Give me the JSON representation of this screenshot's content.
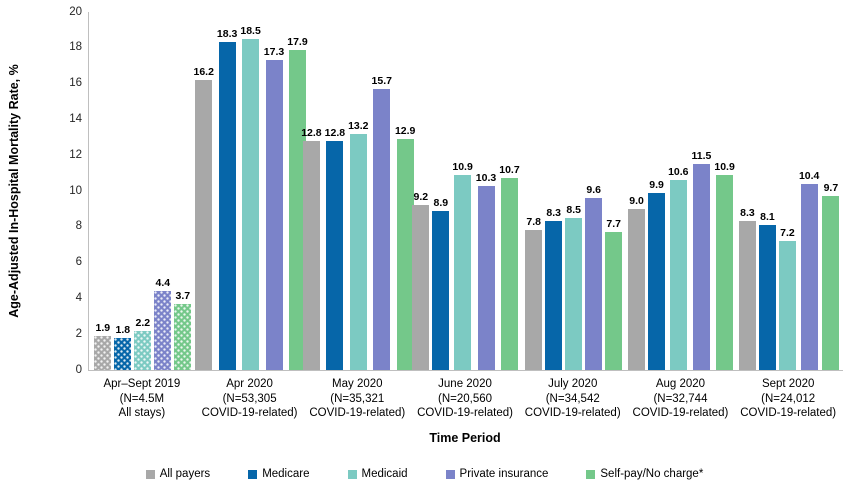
{
  "chart_data": {
    "type": "bar",
    "title": "",
    "ylabel": "Age-Adjusted In-Hospital Mortality Rate, %",
    "xlabel": "Time Period",
    "ylim": [
      0,
      20
    ],
    "ytick_step": 2,
    "grid": false,
    "legend_position": "bottom",
    "value_label_decimals": 1,
    "axis_line_color": "#BFBFBF",
    "categories": [
      {
        "lines": [
          "Apr–Sept 2019",
          "(N=4.5M",
          "All stays)"
        ],
        "patterned": true
      },
      {
        "lines": [
          "Apr 2020",
          "(N=53,305",
          "COVID-19-related)"
        ],
        "patterned": false
      },
      {
        "lines": [
          "May 2020",
          "(N=35,321",
          "COVID-19-related)"
        ],
        "patterned": false
      },
      {
        "lines": [
          "June 2020",
          "(N=20,560",
          "COVID-19-related)"
        ],
        "patterned": false
      },
      {
        "lines": [
          "July 2020",
          "(N=34,542",
          "COVID-19-related)"
        ],
        "patterned": false
      },
      {
        "lines": [
          "Aug 2020",
          "(N=32,744",
          "COVID-19-related)"
        ],
        "patterned": false
      },
      {
        "lines": [
          "Sept 2020",
          "(N=24,012",
          "COVID-19-related)"
        ],
        "patterned": false
      }
    ],
    "series": [
      {
        "name": "All payers",
        "color": "#A8A8A8",
        "values": [
          1.9,
          16.2,
          12.8,
          9.2,
          7.8,
          9.0,
          8.3
        ]
      },
      {
        "name": "Medicare",
        "color": "#0666A9",
        "values": [
          1.8,
          18.3,
          12.8,
          8.9,
          8.3,
          9.9,
          8.1
        ]
      },
      {
        "name": "Medicaid",
        "color": "#7CCAC2",
        "values": [
          2.2,
          18.5,
          13.2,
          10.9,
          8.5,
          10.6,
          7.2
        ]
      },
      {
        "name": "Private insurance",
        "color": "#7B83C9",
        "values": [
          4.4,
          17.3,
          15.7,
          10.3,
          9.6,
          11.5,
          10.4
        ]
      },
      {
        "name": "Self-pay/No charge*",
        "color": "#74C88A",
        "values": [
          3.7,
          17.9,
          12.9,
          10.7,
          7.7,
          10.9,
          9.7
        ]
      }
    ]
  }
}
